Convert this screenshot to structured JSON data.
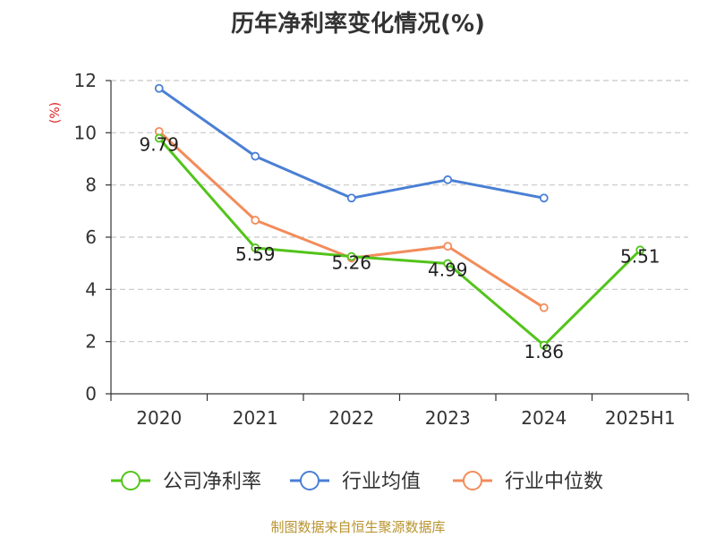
{
  "chart_data": {
    "type": "line",
    "title": "历年净利率变化情况(%)",
    "ylabel": "(%)",
    "xlabel": "",
    "categories": [
      "2020",
      "2021",
      "2022",
      "2023",
      "2024",
      "2025H1"
    ],
    "ylim": [
      0,
      12
    ],
    "yticks": [
      0,
      2,
      4,
      6,
      8,
      10,
      12
    ],
    "grid": true,
    "legend_position": "bottom",
    "series": [
      {
        "name": "公司净利率",
        "color": "#52c41a",
        "values": [
          9.79,
          5.59,
          5.26,
          4.99,
          1.86,
          5.51
        ],
        "labels": [
          "9.79",
          "5.59",
          "5.26",
          "4.99",
          "1.86",
          "5.51"
        ]
      },
      {
        "name": "行业均值",
        "color": "#4a7fd4",
        "values": [
          11.7,
          9.1,
          7.5,
          8.2,
          7.5,
          null
        ]
      },
      {
        "name": "行业中位数",
        "color": "#f28c5b",
        "values": [
          10.05,
          6.65,
          5.2,
          5.65,
          3.3,
          null
        ]
      }
    ]
  },
  "source": "制图数据来自恒生聚源数据库"
}
